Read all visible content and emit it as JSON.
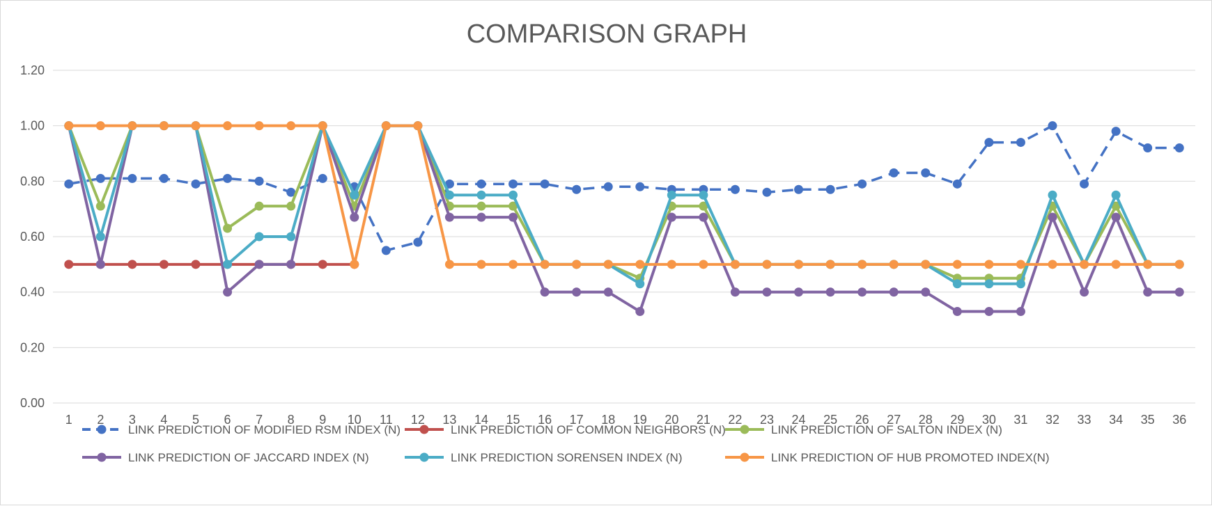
{
  "chart_data": {
    "type": "line",
    "title": "COMPARISON GRAPH",
    "xlabel": "",
    "ylabel": "",
    "ylim": [
      0,
      1.2
    ],
    "yticks": [
      "0.00",
      "0.20",
      "0.40",
      "0.60",
      "0.80",
      "1.00",
      "1.20"
    ],
    "grid": true,
    "legend_position": "bottom",
    "categories": [
      "1",
      "2",
      "3",
      "4",
      "5",
      "6",
      "7",
      "8",
      "9",
      "10",
      "11",
      "12",
      "13",
      "14",
      "15",
      "16",
      "17",
      "18",
      "19",
      "20",
      "21",
      "22",
      "23",
      "24",
      "25",
      "26",
      "27",
      "28",
      "29",
      "30",
      "31",
      "32",
      "33",
      "34",
      "35",
      "36"
    ],
    "series": [
      {
        "name": "LINK PREDICTION OF MODIFIED RSM INDEX (N)",
        "color": "#4472c4",
        "dashed": true,
        "values": [
          0.79,
          0.81,
          0.81,
          0.81,
          0.79,
          0.81,
          0.8,
          0.76,
          0.81,
          0.78,
          0.55,
          0.58,
          0.79,
          0.79,
          0.79,
          0.79,
          0.77,
          0.78,
          0.78,
          0.77,
          0.77,
          0.77,
          0.76,
          0.77,
          0.77,
          0.79,
          0.83,
          0.83,
          0.79,
          0.94,
          0.94,
          1.0,
          0.79,
          0.98,
          0.92,
          0.92
        ]
      },
      {
        "name": "LINK PREDICTION OF COMMON NEIGHBORS (N)",
        "color": "#c0504d",
        "dashed": false,
        "values": [
          0.5,
          0.5,
          0.5,
          0.5,
          0.5,
          0.5,
          0.5,
          0.5,
          0.5,
          0.5,
          null,
          null,
          null,
          null,
          null,
          null,
          null,
          null,
          null,
          null,
          null,
          null,
          null,
          null,
          null,
          null,
          null,
          null,
          null,
          null,
          null,
          null,
          null,
          null,
          null,
          null
        ]
      },
      {
        "name": "LINK PREDICTION OF SALTON INDEX (N)",
        "color": "#9bbb59",
        "dashed": false,
        "values": [
          1.0,
          0.71,
          1.0,
          1.0,
          1.0,
          0.63,
          0.71,
          0.71,
          1.0,
          0.71,
          1.0,
          1.0,
          0.71,
          0.71,
          0.71,
          0.5,
          0.5,
          0.5,
          0.45,
          0.71,
          0.71,
          0.5,
          0.5,
          0.5,
          0.5,
          0.5,
          0.5,
          0.5,
          0.45,
          0.45,
          0.45,
          0.71,
          0.5,
          0.71,
          0.5,
          0.5
        ]
      },
      {
        "name": "LINK PREDICTION OF JACCARD INDEX (N)",
        "color": "#8064a2",
        "dashed": false,
        "values": [
          1.0,
          0.5,
          1.0,
          1.0,
          1.0,
          0.4,
          0.5,
          0.5,
          1.0,
          0.67,
          1.0,
          1.0,
          0.67,
          0.67,
          0.67,
          0.4,
          0.4,
          0.4,
          0.33,
          0.67,
          0.67,
          0.4,
          0.4,
          0.4,
          0.4,
          0.4,
          0.4,
          0.4,
          0.33,
          0.33,
          0.33,
          0.67,
          0.4,
          0.67,
          0.4,
          0.4
        ]
      },
      {
        "name": "LINK PREDICTION SORENSEN INDEX (N)",
        "color": "#4bacc6",
        "dashed": false,
        "values": [
          1.0,
          0.6,
          1.0,
          1.0,
          1.0,
          0.5,
          0.6,
          0.6,
          1.0,
          0.75,
          1.0,
          1.0,
          0.75,
          0.75,
          0.75,
          0.5,
          0.5,
          0.5,
          0.43,
          0.75,
          0.75,
          0.5,
          0.5,
          0.5,
          0.5,
          0.5,
          0.5,
          0.5,
          0.43,
          0.43,
          0.43,
          0.75,
          0.5,
          0.75,
          0.5,
          0.5
        ]
      },
      {
        "name": "LINK PREDICTION OF HUB PROMOTED INDEX(N)",
        "color": "#f79646",
        "dashed": false,
        "values": [
          1.0,
          1.0,
          1.0,
          1.0,
          1.0,
          1.0,
          1.0,
          1.0,
          1.0,
          0.5,
          1.0,
          1.0,
          0.5,
          0.5,
          0.5,
          0.5,
          0.5,
          0.5,
          0.5,
          0.5,
          0.5,
          0.5,
          0.5,
          0.5,
          0.5,
          0.5,
          0.5,
          0.5,
          0.5,
          0.5,
          0.5,
          0.5,
          0.5,
          0.5,
          0.5,
          0.5
        ]
      }
    ]
  }
}
